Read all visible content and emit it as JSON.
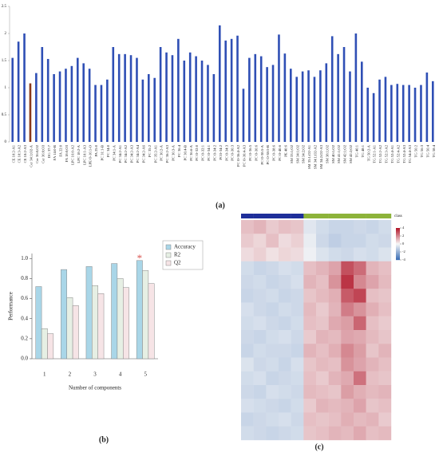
{
  "chart_data": [
    {
      "type": "bar",
      "label": "(a)",
      "categories": [
        "CE 18:2-A1",
        "CE 18:3-A2",
        "CE 18:2-A3",
        "Cer 34:1;O2-A",
        "Cer 36:0;O2",
        "Cer 36:0;O3",
        "DG 37:7",
        "FA 14:0-B",
        "FA 22:0",
        "FA 18:0;O3",
        "LPC 16:0-A2",
        "LPC 18:2-A",
        "LPC 18:1-A3",
        "LPE O-16:1-O",
        "PA 25:0",
        "PC 31:1-B",
        "PC 34:0",
        "PC 34:1-A",
        "PC 34:2-A1",
        "PC 34:2-A2",
        "PC 34:2-A3",
        "PC 34:2-A4",
        "PC 34:2-A6",
        "PC 35:2",
        "PC 35:2-A1",
        "PC 36:2-A",
        "PC 36:2-A3",
        "PC 36:3-A",
        "PC 36:4",
        "PC 36:4-B",
        "PC 36:6-A",
        "PC O-32:0",
        "PC O-32:1",
        "PC O-34:1",
        "PC O-34:2",
        "PCO-34:2",
        "PC O-34:3",
        "PC O-36:3",
        "PC O-36:4-A2",
        "PC O-36:4-A3",
        "PC O-36:5",
        "PC O-36:6",
        "PC O-38:5-A",
        "PC O-38:5-B",
        "PC O-38:6",
        "PC O-40:6",
        "PE 40:6",
        "SM 33:1;O2",
        "SM 34:1;O2",
        "SM 34:2;O2",
        "SM 35:1;O2-A1",
        "SM 34:1;O2-A2",
        "SM 34:2;O2-A3",
        "SM 38:1;O2",
        "SM 40:1;O2",
        "SM 41:1;O2",
        "SM 42:1;O2",
        "SM 42:2;O2",
        "TG 46:1",
        "TG 48:1",
        "TG 50:2-A",
        "TG 52:1-A1",
        "TG 52:2-A2",
        "TG 52:3-A2",
        "TG 52:4-A1",
        "TG 52:4-A2",
        "TG 52:4-A3",
        "TG 54:4-A3",
        "TG 56:2",
        "TG 56:3",
        "TG 56:4",
        "TG 58:4"
      ],
      "values": [
        1.55,
        1.85,
        2.0,
        1.08,
        1.27,
        1.75,
        1.53,
        1.25,
        1.3,
        1.35,
        1.4,
        1.55,
        1.45,
        1.35,
        1.05,
        1.05,
        1.15,
        1.75,
        1.62,
        1.62,
        1.6,
        1.55,
        1.15,
        1.25,
        1.18,
        1.75,
        1.65,
        1.6,
        1.9,
        1.5,
        1.65,
        1.58,
        1.5,
        1.42,
        1.25,
        2.15,
        1.87,
        1.9,
        1.96,
        0.98,
        1.55,
        1.62,
        1.58,
        1.38,
        1.42,
        1.98,
        1.63,
        1.35,
        1.2,
        1.3,
        1.32,
        1.2,
        1.32,
        1.45,
        1.95,
        1.62,
        1.75,
        1.3,
        2.0,
        1.48,
        1.0,
        0.9,
        1.15,
        1.2,
        1.05,
        1.07,
        1.05,
        1.05,
        1.0,
        1.05,
        1.28,
        1.12
      ],
      "colors": [
        "#2f4fb5",
        "#2f4fb5",
        "#2f4fb5",
        "#8b3a1a",
        "#2f4fb5",
        "#2f4fb5",
        "#2f4fb5",
        "#2f4fb5",
        "#2f4fb5",
        "#2f4fb5",
        "#2f4fb5",
        "#2f4fb5",
        "#2f4fb5",
        "#2f4fb5",
        "#2f4fb5",
        "#2f4fb5",
        "#2f4fb5",
        "#2f4fb5",
        "#2f4fb5",
        "#2f4fb5",
        "#2f4fb5",
        "#2f4fb5",
        "#2f4fb5",
        "#2f4fb5",
        "#2f4fb5",
        "#2f4fb5",
        "#2f4fb5",
        "#2f4fb5",
        "#2f4fb5",
        "#2f4fb5",
        "#2f4fb5",
        "#2f4fb5",
        "#2f4fb5",
        "#2f4fb5",
        "#2f4fb5",
        "#2f4fb5",
        "#2f4fb5",
        "#2f4fb5",
        "#2f4fb5",
        "#2f4fb5",
        "#2f4fb5",
        "#2f4fb5",
        "#2f4fb5",
        "#2f4fb5",
        "#2f4fb5",
        "#2f4fb5",
        "#2f4fb5",
        "#2f4fb5",
        "#2f4fb5",
        "#2f4fb5",
        "#2f4fb5",
        "#2f4fb5",
        "#2f4fb5",
        "#2f4fb5",
        "#2f4fb5",
        "#2f4fb5",
        "#2f4fb5",
        "#2f4fb5",
        "#2f4fb5",
        "#2f4fb5",
        "#2f4fb5",
        "#2f4fb5",
        "#2f4fb5",
        "#2f4fb5",
        "#2f4fb5",
        "#2f4fb5",
        "#2f4fb5",
        "#2f4fb5",
        "#2f4fb5",
        "#2f4fb5",
        "#2f4fb5",
        "#2f4fb5"
      ],
      "ylim": [
        0,
        2.5
      ],
      "yticks": [
        0,
        0.5,
        1,
        1.5,
        2,
        2.5
      ]
    },
    {
      "type": "grouped_bar",
      "label": "(b)",
      "x_label": "Number of components",
      "y_label": "Performance",
      "categories": [
        "1",
        "2",
        "3",
        "4",
        "5"
      ],
      "series": [
        {
          "name": "Accuracy",
          "color": "#a9d6e8",
          "values": [
            0.72,
            0.89,
            0.92,
            0.95,
            0.98
          ]
        },
        {
          "name": "R2",
          "color": "#e6efe4",
          "values": [
            0.3,
            0.61,
            0.73,
            0.8,
            0.88
          ]
        },
        {
          "name": "Q2",
          "color": "#f6e4e6",
          "values": [
            0.25,
            0.53,
            0.65,
            0.71,
            0.75
          ]
        }
      ],
      "annotation": {
        "text": "*",
        "category": "5",
        "color": "#d9534f"
      },
      "ylim": [
        0,
        1.05
      ],
      "yticks": [
        {
          "value": 0,
          "label": "0.0"
        },
        0.2,
        0.4,
        0.6,
        0.8,
        {
          "value": 1,
          "label": "1.0"
        }
      ],
      "legend": "right"
    },
    {
      "type": "heatmap",
      "label": "(c)",
      "legend_title": "class",
      "column_colors": [
        "#1f2f9a",
        "#1f2f9a",
        "#1f2f9a",
        "#1f2f9a",
        "#1f2f9a",
        "#8db33a",
        "#8db33a",
        "#8db33a",
        "#8db33a",
        "#8db33a",
        "#8db33a",
        "#8db33a"
      ],
      "colormap": [
        "#3b6fb6",
        "#f7f7f7",
        "#b2182b"
      ],
      "clim": [
        -4,
        4
      ],
      "cticks": [
        4,
        2,
        0,
        -2,
        -4
      ],
      "values": [
        [
          1,
          1.2,
          0.8,
          1,
          0.9,
          -0.5,
          -0.8,
          -1,
          -1,
          -0.9,
          -1,
          -0.8
        ],
        [
          0.8,
          0.6,
          1,
          0.5,
          0.7,
          -0.3,
          -0.9,
          -1.2,
          -1,
          -1,
          -0.8,
          -0.9
        ],
        [
          0.5,
          0.7,
          0.4,
          0.6,
          0.5,
          -0.2,
          -0.6,
          -0.8,
          -0.9,
          -0.7,
          -0.8,
          -0.6
        ],
        [
          -0.8,
          -1,
          -0.9,
          -0.7,
          -0.8,
          1,
          1.2,
          1.5,
          3,
          2.5,
          1.2,
          1
        ],
        [
          -0.9,
          -0.8,
          -1,
          -0.9,
          -0.7,
          1.2,
          1,
          1.8,
          3.5,
          2,
          1.5,
          1.1
        ],
        [
          -1,
          -0.9,
          -0.8,
          -1,
          -0.9,
          0.9,
          1.1,
          1.3,
          2.8,
          3.2,
          1,
          0.9
        ],
        [
          -0.7,
          -0.9,
          -1,
          -0.8,
          -0.9,
          1.1,
          0.8,
          1.2,
          2.2,
          1.8,
          1.3,
          1
        ],
        [
          -0.8,
          -0.7,
          -0.9,
          -1,
          -0.8,
          1,
          0.9,
          1.4,
          1.6,
          2.6,
          1,
          0.8
        ],
        [
          -0.9,
          -1,
          -0.8,
          -0.7,
          -0.9,
          0.8,
          1.2,
          1.1,
          1.5,
          1.4,
          1.1,
          0.9
        ],
        [
          -1,
          -0.8,
          -0.9,
          -0.9,
          -1,
          1.2,
          1,
          1.3,
          2,
          1.6,
          0.9,
          1.2
        ],
        [
          -0.6,
          -0.9,
          -0.8,
          -1,
          -0.7,
          0.9,
          1.1,
          1,
          1.8,
          1.5,
          1.2,
          1
        ],
        [
          -0.8,
          -0.7,
          -1,
          -0.9,
          -0.8,
          1,
          0.8,
          1.2,
          1.4,
          2.4,
          1,
          0.9
        ],
        [
          -0.9,
          -1,
          -0.7,
          -0.8,
          -0.9,
          1.1,
          1,
          0.9,
          1.6,
          1.3,
          1.1,
          1.2
        ],
        [
          -0.7,
          -0.8,
          -0.9,
          -1,
          -0.8,
          0.8,
          1.2,
          1.1,
          1.2,
          1.5,
          0.9,
          1
        ],
        [
          -1,
          -0.9,
          -0.8,
          -0.7,
          -0.9,
          1,
          0.9,
          1,
          1.3,
          1.1,
          1.2,
          0.8
        ],
        [
          -0.8,
          -0.9,
          -1,
          -0.9,
          -0.8,
          0.9,
          1,
          1.2,
          1.1,
          1.4,
          1,
          1.1
        ]
      ]
    }
  ]
}
